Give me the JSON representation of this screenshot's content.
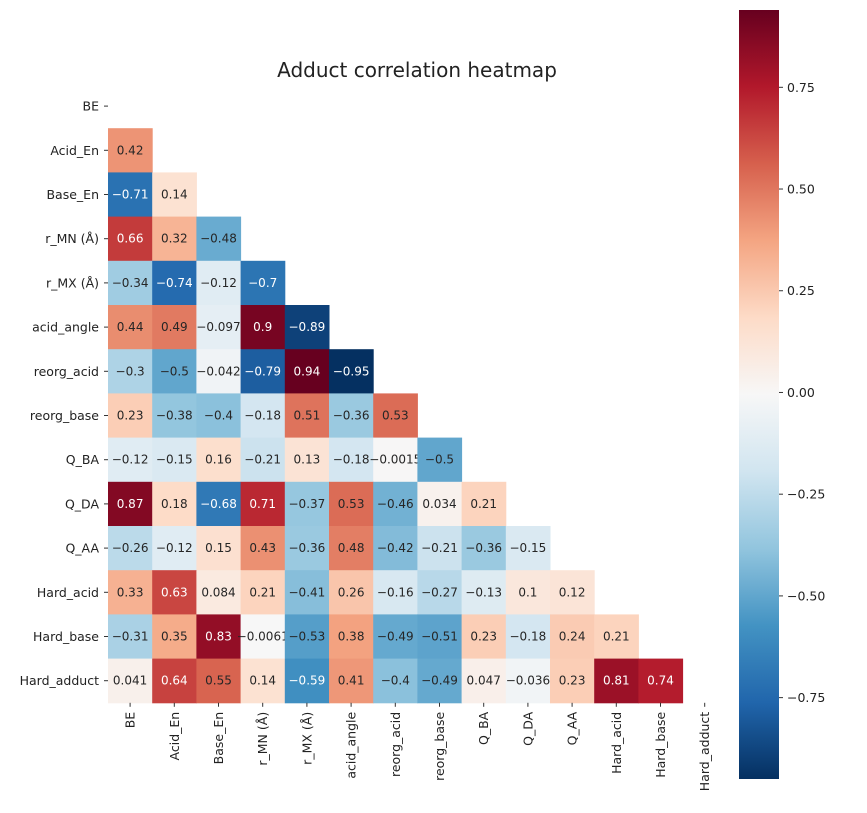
{
  "chart_data": {
    "type": "heatmap",
    "title": "Adduct correlation heatmap",
    "labels": [
      "BE",
      "Acid_En",
      "Base_En",
      "r_MN (Å)",
      "r_MX (Å)",
      "acid_angle",
      "reorg_acid",
      "reorg_base",
      "Q_BA",
      "Q_DA",
      "Q_AA",
      "Hard_acid",
      "Hard_base",
      "Hard_adduct"
    ],
    "mask": "upper triangle including diagonal",
    "matrix": [
      [
        null,
        null,
        null,
        null,
        null,
        null,
        null,
        null,
        null,
        null,
        null,
        null,
        null,
        null
      ],
      [
        0.42,
        null,
        null,
        null,
        null,
        null,
        null,
        null,
        null,
        null,
        null,
        null,
        null,
        null
      ],
      [
        -0.71,
        0.14,
        null,
        null,
        null,
        null,
        null,
        null,
        null,
        null,
        null,
        null,
        null,
        null
      ],
      [
        0.66,
        0.32,
        -0.48,
        null,
        null,
        null,
        null,
        null,
        null,
        null,
        null,
        null,
        null,
        null
      ],
      [
        -0.34,
        -0.74,
        -0.12,
        -0.7,
        null,
        null,
        null,
        null,
        null,
        null,
        null,
        null,
        null,
        null
      ],
      [
        0.44,
        0.49,
        -0.097,
        0.9,
        -0.89,
        null,
        null,
        null,
        null,
        null,
        null,
        null,
        null,
        null
      ],
      [
        -0.3,
        -0.5,
        -0.042,
        -0.79,
        0.94,
        -0.95,
        null,
        null,
        null,
        null,
        null,
        null,
        null,
        null
      ],
      [
        0.23,
        -0.38,
        -0.4,
        -0.18,
        0.51,
        -0.36,
        0.53,
        null,
        null,
        null,
        null,
        null,
        null,
        null
      ],
      [
        -0.12,
        -0.15,
        0.16,
        -0.21,
        0.13,
        -0.18,
        -0.0015,
        -0.5,
        null,
        null,
        null,
        null,
        null,
        null
      ],
      [
        0.87,
        0.18,
        -0.68,
        0.71,
        -0.37,
        0.53,
        -0.46,
        0.034,
        0.21,
        null,
        null,
        null,
        null,
        null
      ],
      [
        -0.26,
        -0.12,
        0.15,
        0.43,
        -0.36,
        0.48,
        -0.42,
        -0.21,
        -0.36,
        -0.15,
        null,
        null,
        null,
        null
      ],
      [
        0.33,
        0.63,
        0.084,
        0.21,
        -0.41,
        0.26,
        -0.16,
        -0.27,
        -0.13,
        0.1,
        0.12,
        null,
        null,
        null
      ],
      [
        -0.31,
        0.35,
        0.83,
        -0.0061,
        -0.53,
        0.38,
        -0.49,
        -0.51,
        0.23,
        -0.18,
        0.24,
        0.21,
        null,
        null
      ],
      [
        0.041,
        0.64,
        0.55,
        0.14,
        -0.59,
        0.41,
        -0.4,
        -0.49,
        0.047,
        -0.036,
        0.23,
        0.81,
        0.74,
        null
      ]
    ],
    "colorbar": {
      "colormap": "RdBu_r",
      "vmin": -0.95,
      "vmax": 0.94,
      "ticks": [
        0.75,
        0.5,
        0.25,
        0.0,
        -0.25,
        -0.5,
        -0.75
      ],
      "tick_labels": [
        "0.75",
        "0.50",
        "0.25",
        "0.00",
        "−0.25",
        "−0.50",
        "−0.75"
      ]
    }
  }
}
